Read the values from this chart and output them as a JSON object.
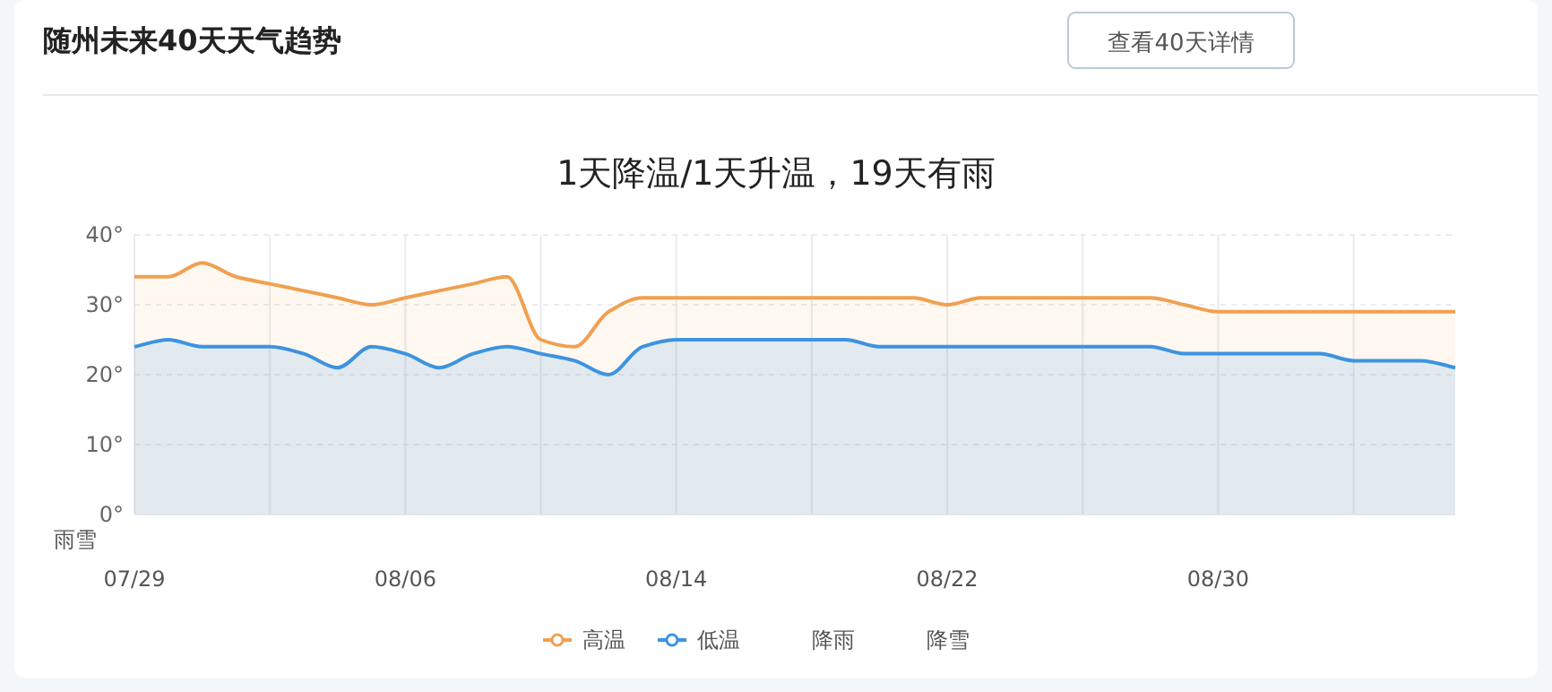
{
  "chart_data": {
    "type": "area",
    "title": "随州未来40天天气趋势",
    "subtitle": "1天降温/1天升温，19天有雨",
    "categories": [
      "07/29",
      null,
      null,
      null,
      null,
      null,
      null,
      null,
      "08/06",
      null,
      null,
      null,
      null,
      null,
      null,
      null,
      "08/14",
      null,
      null,
      null,
      null,
      null,
      null,
      null,
      "08/22",
      null,
      null,
      null,
      null,
      null,
      null,
      null,
      "08/30",
      null,
      null,
      null,
      null,
      null,
      null,
      null
    ],
    "series": [
      {
        "name": "高温",
        "color": "#f0a050",
        "values": [
          34,
          34,
          36,
          34,
          33,
          32,
          31,
          30,
          31,
          32,
          33,
          34,
          25,
          24,
          29,
          31,
          31,
          31,
          31,
          31,
          31,
          31,
          31,
          31,
          30,
          31,
          31,
          31,
          31,
          31,
          31,
          30,
          29,
          29,
          29,
          29,
          29,
          29,
          29,
          29
        ]
      },
      {
        "name": "低温",
        "color": "#3d93e0",
        "values": [
          24,
          25,
          24,
          24,
          24,
          23,
          21,
          24,
          23,
          21,
          23,
          24,
          23,
          22,
          20,
          24,
          25,
          25,
          25,
          25,
          25,
          25,
          24,
          24,
          24,
          24,
          24,
          24,
          24,
          24,
          24,
          23,
          23,
          23,
          23,
          23,
          22,
          22,
          22,
          21
        ]
      }
    ],
    "ylim": [
      0,
      40
    ],
    "yticks": [
      {
        "value": 0,
        "label": "0°"
      },
      {
        "value": 10,
        "label": "10°"
      },
      {
        "value": 20,
        "label": "20°"
      },
      {
        "value": 30,
        "label": "30°"
      },
      {
        "value": 40,
        "label": "40°"
      }
    ],
    "grid": true,
    "legend": "bottom",
    "annotations": [
      "查看40天详情",
      "雨雪",
      "降雨",
      "降雪"
    ]
  }
}
